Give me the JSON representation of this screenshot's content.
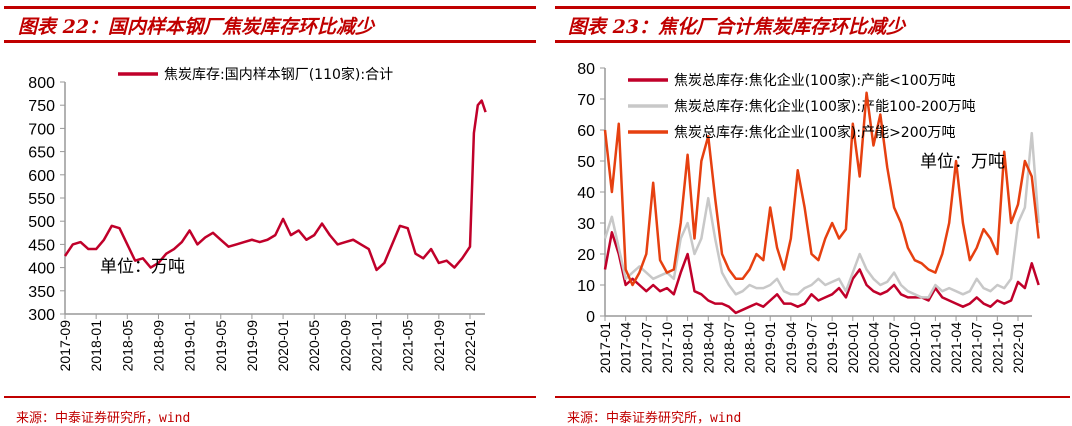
{
  "left": {
    "title": "图表 22：国内样本钢厂焦炭库存环比减少",
    "source": "来源：中泰证券研究所，wind"
  },
  "right": {
    "title": "图表 23：焦化厂合计焦炭库存环比减少",
    "source": "来源：中泰证券研究所，wind"
  },
  "chart_data": [
    {
      "type": "line",
      "ylim": [
        300,
        800
      ],
      "yticks": [
        300,
        350,
        400,
        450,
        500,
        550,
        600,
        650,
        700,
        750,
        800
      ],
      "xticks": [
        "2017-09",
        "2018-01",
        "2018-05",
        "2018-09",
        "2019-01",
        "2019-05",
        "2019-09",
        "2020-01",
        "2020-05",
        "2020-09",
        "2021-01",
        "2021-05",
        "2021-09",
        "2022-01"
      ],
      "annotation": "单位：万吨",
      "grid": false,
      "legend": "top",
      "series": [
        {
          "name": "焦炭库存:国内样本钢厂(110家):合计",
          "color": "#c0002a",
          "x": [
            "2017-09",
            "2017-10",
            "2017-11",
            "2017-12",
            "2018-01",
            "2018-02",
            "2018-03",
            "2018-04",
            "2018-05",
            "2018-06",
            "2018-07",
            "2018-08",
            "2018-09",
            "2018-10",
            "2018-11",
            "2018-12",
            "2019-01",
            "2019-02",
            "2019-03",
            "2019-04",
            "2019-05",
            "2019-06",
            "2019-07",
            "2019-08",
            "2019-09",
            "2019-10",
            "2019-11",
            "2019-12",
            "2020-01",
            "2020-02",
            "2020-03",
            "2020-04",
            "2020-05",
            "2020-06",
            "2020-07",
            "2020-08",
            "2020-09",
            "2020-10",
            "2020-11",
            "2020-12",
            "2021-01",
            "2021-02",
            "2021-03",
            "2021-04",
            "2021-05",
            "2021-06",
            "2021-07",
            "2021-08",
            "2021-09",
            "2021-10",
            "2021-11",
            "2021-12",
            "2022-01",
            "2022-01-15",
            "2022-02",
            "2022-02-15",
            "2022-03"
          ],
          "values": [
            425,
            450,
            455,
            440,
            440,
            460,
            490,
            485,
            450,
            415,
            420,
            400,
            410,
            430,
            440,
            455,
            480,
            450,
            465,
            475,
            460,
            445,
            450,
            455,
            460,
            455,
            460,
            470,
            505,
            470,
            480,
            460,
            470,
            495,
            470,
            450,
            455,
            460,
            450,
            440,
            395,
            410,
            450,
            490,
            485,
            430,
            420,
            440,
            410,
            415,
            400,
            420,
            445,
            690,
            750,
            760,
            735
          ]
        }
      ]
    },
    {
      "type": "line",
      "ylim": [
        0,
        80
      ],
      "yticks": [
        0,
        10,
        20,
        30,
        40,
        50,
        60,
        70,
        80
      ],
      "xticks": [
        "2017-01",
        "2017-04",
        "2017-07",
        "2017-10",
        "2018-01",
        "2018-04",
        "2018-07",
        "2018-10",
        "2019-01",
        "2019-04",
        "2019-07",
        "2019-10",
        "2020-01",
        "2020-04",
        "2020-07",
        "2020-10",
        "2021-01",
        "2021-04",
        "2021-07",
        "2021-10",
        "2022-01"
      ],
      "annotation": "单位：万吨",
      "grid": false,
      "legend": "top-left",
      "x_start": "2017-01",
      "series": [
        {
          "name": "焦炭总库存:焦化企业(100家):产能<100万吨",
          "color": "#c0002a",
          "values": [
            15,
            27,
            20,
            10,
            12,
            10,
            8,
            10,
            8,
            9,
            7,
            14,
            20,
            8,
            7,
            5,
            4,
            4,
            3,
            1,
            2,
            3,
            4,
            3,
            5,
            7,
            4,
            4,
            3,
            4,
            7,
            5,
            6,
            7,
            9,
            6,
            12,
            15,
            10,
            8,
            7,
            8,
            10,
            7,
            6,
            6,
            6,
            5,
            9,
            6,
            5,
            4,
            3,
            4,
            6,
            4,
            3,
            5,
            4,
            5,
            11,
            9,
            17,
            10
          ]
        },
        {
          "name": "焦炭总库存:焦化企业(100家):产能100-200万吨",
          "color": "#c8c8c8",
          "values": [
            25,
            32,
            22,
            12,
            14,
            16,
            14,
            12,
            13,
            14,
            12,
            25,
            30,
            20,
            25,
            38,
            25,
            14,
            10,
            7,
            8,
            10,
            9,
            9,
            10,
            12,
            8,
            7,
            7,
            9,
            10,
            12,
            10,
            11,
            12,
            8,
            14,
            20,
            15,
            12,
            10,
            11,
            14,
            10,
            8,
            7,
            6,
            6,
            10,
            8,
            9,
            8,
            7,
            8,
            12,
            9,
            8,
            10,
            9,
            12,
            30,
            35,
            59,
            30
          ]
        },
        {
          "name": "焦炭总库存:焦化企业(100家):产能>200万吨",
          "color": "#e64010",
          "values": [
            60,
            40,
            62,
            15,
            10,
            14,
            20,
            43,
            18,
            14,
            15,
            30,
            52,
            25,
            50,
            58,
            38,
            20,
            15,
            12,
            12,
            15,
            20,
            18,
            35,
            22,
            15,
            25,
            47,
            35,
            20,
            18,
            25,
            30,
            25,
            28,
            62,
            45,
            72,
            55,
            65,
            48,
            35,
            30,
            22,
            18,
            17,
            15,
            14,
            20,
            30,
            50,
            30,
            18,
            22,
            28,
            25,
            20,
            53,
            30,
            36,
            50,
            45,
            25
          ]
        }
      ]
    }
  ]
}
